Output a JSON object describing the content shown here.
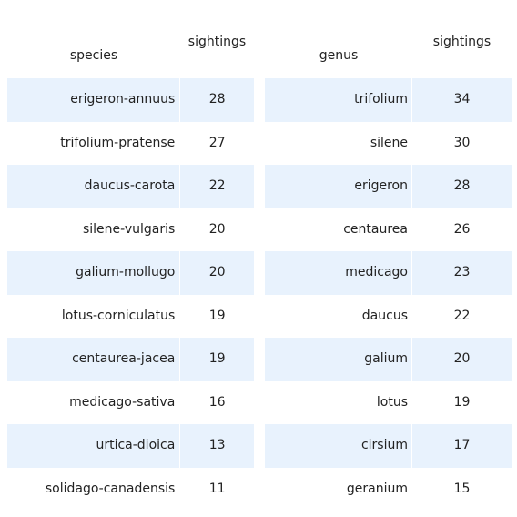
{
  "species_table": {
    "headers": {
      "name": "species",
      "count": "sightings"
    },
    "rows": [
      {
        "name": "erigeron-annuus",
        "count": "28"
      },
      {
        "name": "trifolium-pratense",
        "count": "27"
      },
      {
        "name": "daucus-carota",
        "count": "22"
      },
      {
        "name": "silene-vulgaris",
        "count": "20"
      },
      {
        "name": "galium-mollugo",
        "count": "20"
      },
      {
        "name": "lotus-corniculatus",
        "count": "19"
      },
      {
        "name": "centaurea-jacea",
        "count": "19"
      },
      {
        "name": "medicago-sativa",
        "count": "16"
      },
      {
        "name": "urtica-dioica",
        "count": "13"
      },
      {
        "name": "solidago-canadensis",
        "count": "11"
      }
    ]
  },
  "genus_table": {
    "headers": {
      "name": "genus",
      "count": "sightings"
    },
    "rows": [
      {
        "name": "trifolium",
        "count": "34"
      },
      {
        "name": "silene",
        "count": "30"
      },
      {
        "name": "erigeron",
        "count": "28"
      },
      {
        "name": "centaurea",
        "count": "26"
      },
      {
        "name": "medicago",
        "count": "23"
      },
      {
        "name": "daucus",
        "count": "22"
      },
      {
        "name": "galium",
        "count": "20"
      },
      {
        "name": "lotus",
        "count": "19"
      },
      {
        "name": "cirsium",
        "count": "17"
      },
      {
        "name": "geranium",
        "count": "15"
      }
    ]
  },
  "colors": {
    "row_stripe": "#e8f2fd",
    "header_accent": "#4a90d9",
    "text": "#222222"
  }
}
